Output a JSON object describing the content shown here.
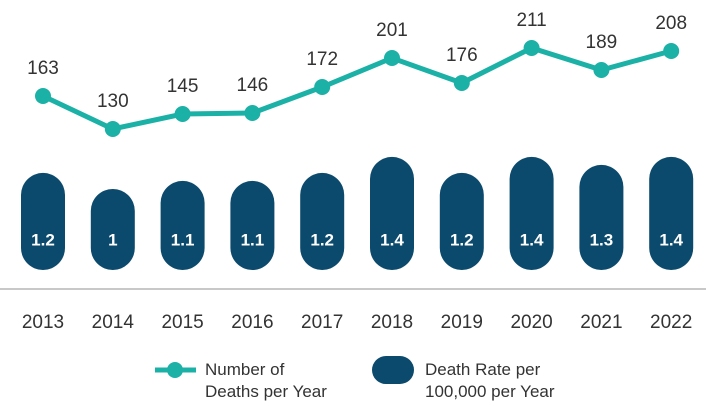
{
  "chart_data": {
    "type": "bar",
    "categories": [
      "2013",
      "2014",
      "2015",
      "2016",
      "2017",
      "2018",
      "2019",
      "2020",
      "2021",
      "2022"
    ],
    "series": [
      {
        "name": "Number of\nDeaths per Year",
        "type": "line",
        "axis": "y2",
        "color": "#1bb1a6",
        "values": [
          163,
          130,
          145,
          146,
          172,
          201,
          176,
          211,
          189,
          208
        ]
      },
      {
        "name": "Death Rate per\n100,000 per Year",
        "type": "bar",
        "axis": "y",
        "color": "#0b4a6c",
        "values": [
          1.2,
          1.0,
          1.1,
          1.1,
          1.2,
          1.4,
          1.2,
          1.4,
          1.3,
          1.4
        ]
      }
    ],
    "ylim": [
      0,
      3.36
    ],
    "y2lim": [
      0,
      259
    ],
    "grid": false
  }
}
